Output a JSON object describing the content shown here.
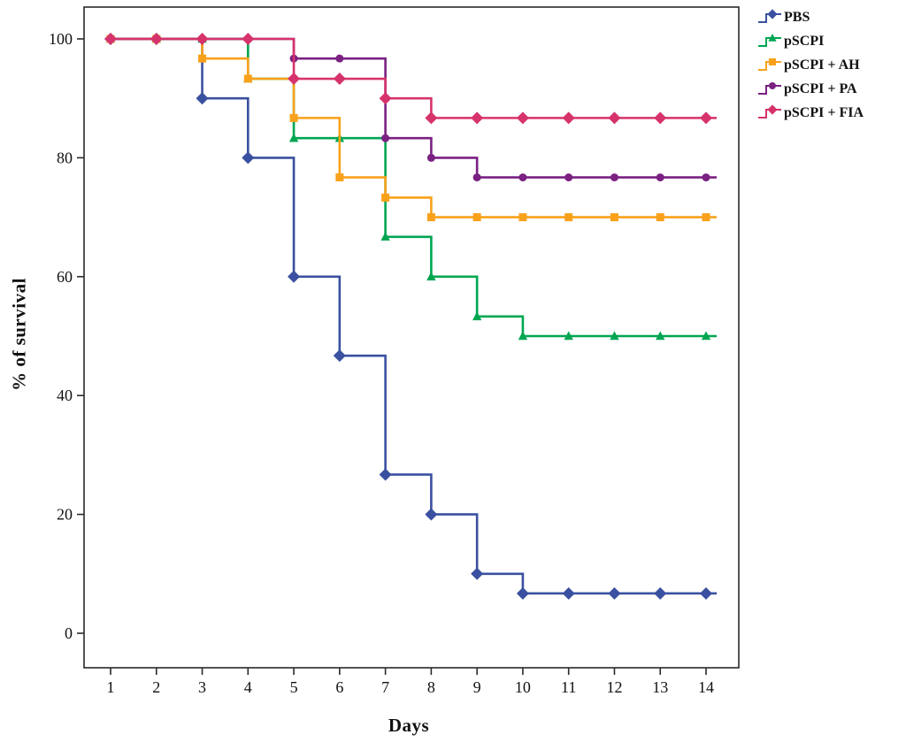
{
  "chart_data": {
    "type": "line",
    "subtype": "step-survival",
    "title": "",
    "xlabel": "Days",
    "ylabel": "% of survival",
    "x": [
      1,
      2,
      3,
      4,
      5,
      6,
      7,
      8,
      9,
      10,
      11,
      12,
      13,
      14
    ],
    "yticks": [
      0,
      20,
      40,
      60,
      80,
      100
    ],
    "ylim": [
      -7,
      104
    ],
    "xlim": [
      0.5,
      14.7
    ],
    "grid": false,
    "legend_position": "right-outside",
    "frame_color": "#2a2a2a",
    "series": [
      {
        "name": "PBS",
        "color": "#3a50a0",
        "marker": "diamond",
        "values": [
          100,
          100,
          90,
          80,
          60,
          46.7,
          26.7,
          20,
          10,
          6.7,
          6.7,
          6.7,
          6.7,
          6.7
        ]
      },
      {
        "name": "pSCPI",
        "color": "#00a651",
        "marker": "triangle",
        "values": [
          100,
          100,
          100,
          93.3,
          83.3,
          83.3,
          66.7,
          60,
          53.3,
          50,
          50,
          50,
          50,
          50
        ]
      },
      {
        "name": "pSCPI + AH",
        "color": "#f9a11b",
        "marker": "square",
        "values": [
          100,
          100,
          96.7,
          93.3,
          86.7,
          76.7,
          73.3,
          70,
          70,
          70,
          70,
          70,
          70,
          70
        ]
      },
      {
        "name": "pSCPI + PA",
        "color": "#7a2182",
        "marker": "circle",
        "values": [
          100,
          100,
          100,
          100,
          96.7,
          96.7,
          83.3,
          80,
          76.7,
          76.7,
          76.7,
          76.7,
          76.7,
          76.7
        ]
      },
      {
        "name": "pSCPI + FIA",
        "color": "#d6336c",
        "marker": "diamond",
        "values": [
          100,
          100,
          100,
          100,
          93.3,
          93.3,
          90,
          86.7,
          86.7,
          86.7,
          86.7,
          86.7,
          86.7,
          86.7
        ]
      }
    ]
  }
}
